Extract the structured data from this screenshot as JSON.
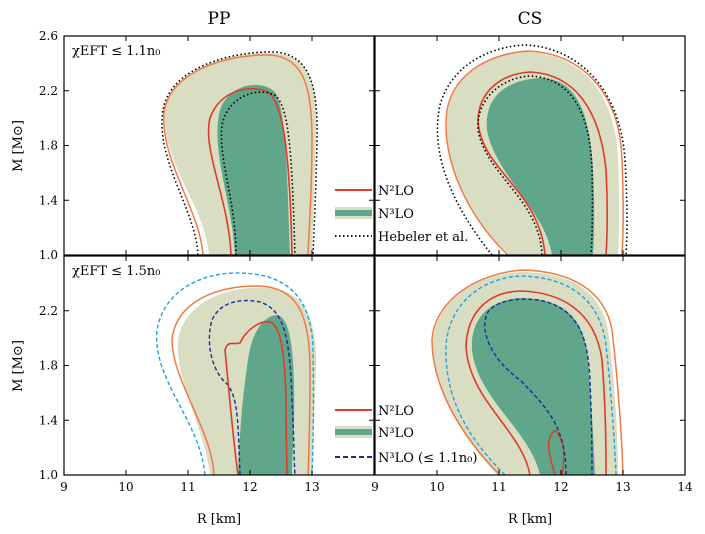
{
  "chart_data": {
    "type": "area",
    "columns": [
      {
        "title": "PP"
      },
      {
        "title": "CS"
      }
    ],
    "rows": [
      {
        "annotation": "χEFT ≤ 1.1n₀",
        "legend": [
          {
            "label": "N²LO",
            "style": "n2lo"
          },
          {
            "label": "N³LO",
            "style": "n3lo"
          },
          {
            "label": "Hebeler et al.",
            "style": "hebeler"
          }
        ]
      },
      {
        "annotation": "χEFT ≤ 1.5n₀",
        "legend": [
          {
            "label": "N²LO",
            "style": "n2lo"
          },
          {
            "label": "N³LO",
            "style": "n3lo"
          },
          {
            "label": "N³LO (≤ 1.1n₀)",
            "style": "n3lo11"
          }
        ]
      }
    ],
    "ylabel": "M [M⊙]",
    "xlabel": "R [km]",
    "xlim_left": [
      9,
      14
    ],
    "xlim_right": [
      9,
      14
    ],
    "ylim": [
      1.0,
      2.6
    ],
    "xticks_left": [
      "9",
      "10",
      "11",
      "12",
      "13"
    ],
    "xticks_right": [
      "9",
      "10",
      "11",
      "12",
      "13",
      "14"
    ],
    "yticks_top": [
      "1.0",
      "1.4",
      "1.8",
      "2.2",
      "2.6"
    ],
    "yticks_bottom": [
      "1.0",
      "1.4",
      "1.8",
      "2.2"
    ],
    "colors": {
      "n2lo_outer": "#f07a45",
      "n2lo_inner": "#e03a2a",
      "n3lo_light": "#d9ddc2",
      "n3lo_dark": "#5fa68b",
      "hebeler": "#000000",
      "dash_outer": "#20a0e0",
      "dash_inner": "#1a2a9a"
    },
    "series": [
      {
        "panel": "PP-1.1",
        "name": "N3LO outer band",
        "r": [
          11.2,
          11.0,
          10.6,
          11.0,
          11.6,
          12.3,
          12.9,
          13.1,
          13.0,
          12.9
        ],
        "m": [
          1.0,
          1.5,
          2.0,
          2.35,
          2.44,
          2.44,
          2.3,
          2.0,
          1.5,
          1.0
        ]
      },
      {
        "panel": "PP-1.1",
        "name": "N3LO inner band",
        "r": [
          11.9,
          11.6,
          11.5,
          11.7,
          12.2,
          12.6,
          12.7,
          12.6
        ],
        "m": [
          1.0,
          1.6,
          1.9,
          2.15,
          2.2,
          2.1,
          1.6,
          1.0
        ]
      },
      {
        "panel": "CS-1.1",
        "name": "N3LO outer band",
        "r": [
          11.0,
          10.5,
          10.2,
          10.6,
          11.3,
          12.2,
          12.9,
          13.2,
          13.1,
          12.9
        ],
        "m": [
          1.0,
          1.4,
          1.9,
          2.3,
          2.45,
          2.45,
          2.3,
          1.9,
          1.4,
          1.0
        ]
      },
      {
        "panel": "CS-1.1",
        "name": "N3LO inner band",
        "r": [
          11.7,
          11.3,
          11.0,
          11.0,
          11.5,
          12.2,
          12.6,
          12.6,
          12.5
        ],
        "m": [
          1.0,
          1.4,
          1.7,
          2.0,
          2.2,
          2.25,
          2.0,
          1.5,
          1.0
        ]
      },
      {
        "panel": "PP-1.5",
        "name": "N3LO outer band",
        "r": [
          11.3,
          11.1,
          10.9,
          11.0,
          11.6,
          12.3,
          12.9,
          13.1,
          13.0,
          12.9
        ],
        "m": [
          1.0,
          1.5,
          1.9,
          2.25,
          2.32,
          2.32,
          2.2,
          1.9,
          1.5,
          1.0
        ]
      },
      {
        "panel": "PP-1.5",
        "name": "N3LO inner band",
        "r": [
          11.8,
          11.7,
          11.8,
          12.1,
          12.5,
          12.7,
          12.6
        ],
        "m": [
          1.0,
          1.5,
          1.9,
          2.15,
          2.1,
          1.6,
          1.0
        ]
      },
      {
        "panel": "CS-1.5",
        "name": "N3LO outer band",
        "r": [
          11.1,
          10.5,
          10.1,
          10.2,
          10.8,
          11.5,
          12.2,
          12.8,
          13.0,
          12.9
        ],
        "m": [
          1.0,
          1.4,
          1.9,
          2.25,
          2.42,
          2.45,
          2.42,
          2.2,
          1.7,
          1.0
        ]
      },
      {
        "panel": "CS-1.5",
        "name": "N3LO inner band",
        "r": [
          11.7,
          11.2,
          10.7,
          10.9,
          11.4,
          12.1,
          12.4,
          12.5,
          12.4
        ],
        "m": [
          1.0,
          1.4,
          1.8,
          2.1,
          2.25,
          2.25,
          2.0,
          1.5,
          1.0
        ]
      }
    ]
  }
}
